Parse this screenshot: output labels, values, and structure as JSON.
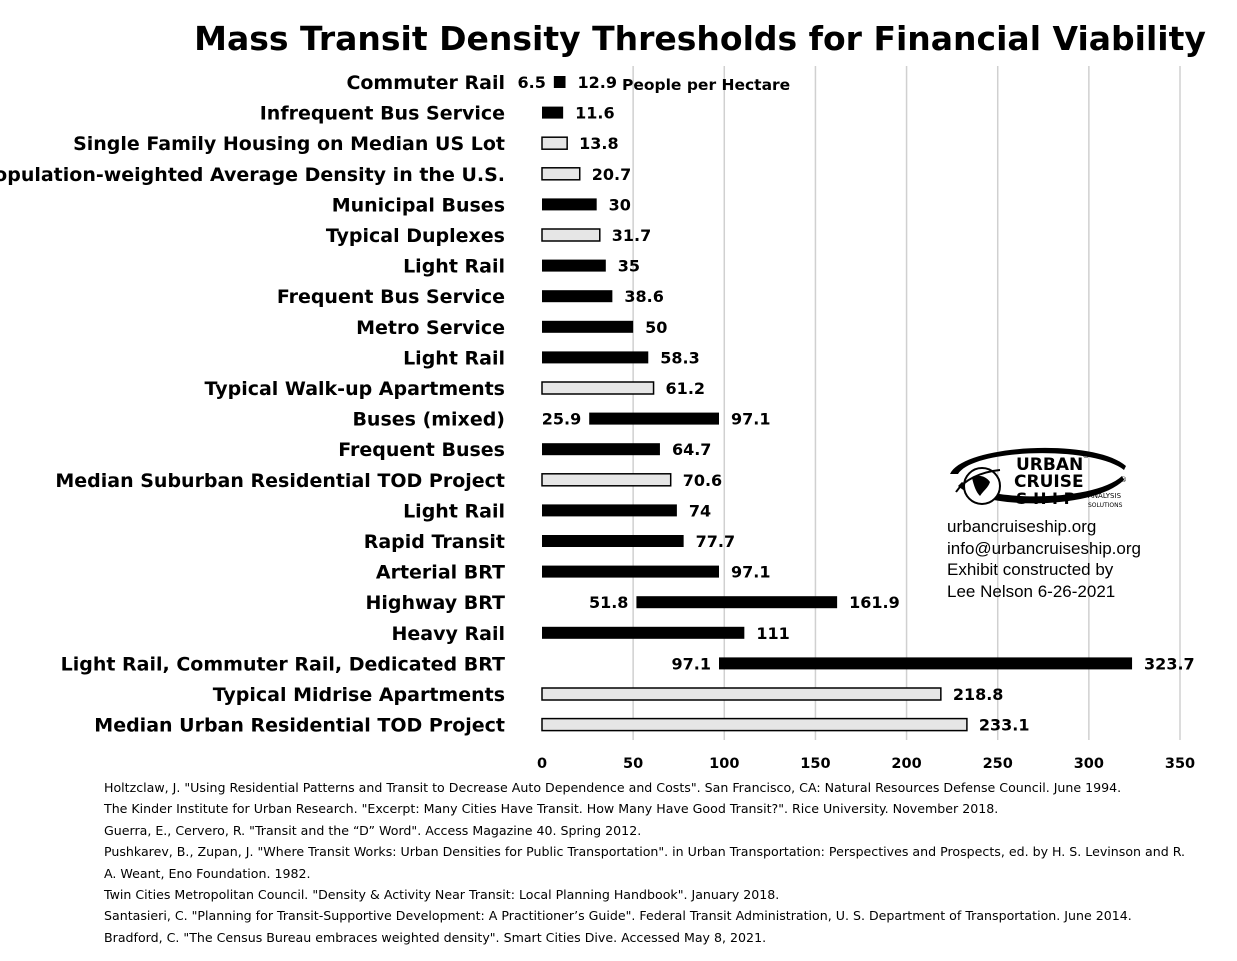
{
  "chart_data": {
    "type": "bar",
    "orientation": "horizontal",
    "title": "Mass Transit Density Thresholds for Financial Viability",
    "unit_annotation": "People per Hectare",
    "xlim": [
      0,
      350
    ],
    "xticks": [
      0,
      50,
      100,
      150,
      200,
      250,
      300,
      350
    ],
    "grid": "vertical",
    "bars": [
      {
        "label": "Commuter Rail",
        "start": 6.5,
        "end": 12.9,
        "start_label": "6.5",
        "end_label": "12.9",
        "kind": "transit"
      },
      {
        "label": "Infrequent Bus Service",
        "start": 0,
        "end": 11.6,
        "end_label": "11.6",
        "kind": "transit"
      },
      {
        "label": "Single Family Housing on Median US Lot",
        "start": 0,
        "end": 13.8,
        "end_label": "13.8",
        "kind": "housing"
      },
      {
        "label": "Population-weighted Average Density in the U.S.",
        "start": 0,
        "end": 20.7,
        "end_label": "20.7",
        "kind": "housing"
      },
      {
        "label": "Municipal Buses",
        "start": 0,
        "end": 30,
        "end_label": "30",
        "kind": "transit"
      },
      {
        "label": "Typical Duplexes",
        "start": 0,
        "end": 31.7,
        "end_label": "31.7",
        "kind": "housing"
      },
      {
        "label": "Light Rail",
        "start": 0,
        "end": 35,
        "end_label": "35",
        "kind": "transit"
      },
      {
        "label": "Frequent Bus Service",
        "start": 0,
        "end": 38.6,
        "end_label": "38.6",
        "kind": "transit"
      },
      {
        "label": "Metro Service",
        "start": 0,
        "end": 50,
        "end_label": "50",
        "kind": "transit"
      },
      {
        "label": "Light Rail",
        "start": 0,
        "end": 58.3,
        "end_label": "58.3",
        "kind": "transit"
      },
      {
        "label": "Typical Walk-up Apartments",
        "start": 0,
        "end": 61.2,
        "end_label": "61.2",
        "kind": "housing"
      },
      {
        "label": "Buses (mixed)",
        "start": 25.9,
        "end": 97.1,
        "start_label": "25.9",
        "end_label": "97.1",
        "kind": "transit"
      },
      {
        "label": "Frequent Buses",
        "start": 0,
        "end": 64.7,
        "end_label": "64.7",
        "kind": "transit"
      },
      {
        "label": "Median Suburban Residential TOD Project",
        "start": 0,
        "end": 70.6,
        "end_label": "70.6",
        "kind": "housing"
      },
      {
        "label": "Light Rail",
        "start": 0,
        "end": 74,
        "end_label": "74",
        "kind": "transit"
      },
      {
        "label": "Rapid Transit",
        "start": 0,
        "end": 77.7,
        "end_label": "77.7",
        "kind": "transit"
      },
      {
        "label": "Arterial BRT",
        "start": 0,
        "end": 97.1,
        "end_label": "97.1",
        "kind": "transit"
      },
      {
        "label": "Highway BRT",
        "start": 51.8,
        "end": 161.9,
        "start_label": "51.8",
        "end_label": "161.9",
        "kind": "transit"
      },
      {
        "label": "Heavy Rail",
        "start": 0,
        "end": 111,
        "end_label": "111",
        "kind": "transit"
      },
      {
        "label": "Light Rail, Commuter Rail, Dedicated BRT",
        "start": 97.1,
        "end": 323.7,
        "start_label": "97.1",
        "end_label": "323.7",
        "kind": "transit"
      },
      {
        "label": "Typical Midrise Apartments",
        "start": 0,
        "end": 218.8,
        "end_label": "218.8",
        "kind": "housing"
      },
      {
        "label": "Median Urban Residential TOD Project",
        "start": 0,
        "end": 233.1,
        "end_label": "233.1",
        "kind": "housing"
      }
    ],
    "colors": {
      "transit": "#000000",
      "housing": "#e6e6e6",
      "housing_border": "#000000",
      "grid": "#d0d0d0"
    }
  },
  "logo": {
    "lines": [
      "URBAN",
      "CRUISE",
      "S H I P"
    ],
    "sub_lines": [
      "ANALYSIS",
      "SOLUTIONS"
    ],
    "registered_mark": "®"
  },
  "credit": {
    "website": "urbancruiseship.org",
    "email": "info@urbancruiseship.org",
    "line3": "Exhibit constructed by",
    "line4": "Lee Nelson 6-26-2021"
  },
  "references": [
    "Holtzclaw, J. \"Using Residential Patterns and Transit to Decrease Auto Dependence and Costs\". San Francisco, CA: Natural Resources Defense Council. June 1994.",
    "The Kinder Institute for Urban Research. \"Excerpt: Many Cities Have Transit. How Many Have Good Transit?\". Rice University. November 2018.",
    "Guerra, E., Cervero, R. \"Transit and the “D” Word\". Access Magazine 40. Spring 2012.",
    "Pushkarev, B., Zupan, J. \"Where Transit Works: Urban Densities for Public Transportation\". in Urban Transportation: Perspectives and Prospects, ed. by H. S. Levinson and R. A. Weant, Eno Foundation. 1982.",
    "Twin Cities Metropolitan Council. \"Density & Activity Near Transit: Local Planning Handbook\". January 2018.",
    "Santasieri, C. \"Planning for Transit-Supportive Development: A Practitioner’s Guide\". Federal Transit Administration, U. S. Department of Transportation. June 2014.",
    "Bradford, C. \"The Census Bureau embraces weighted density\". Smart Cities Dive. Accessed May 8, 2021."
  ]
}
